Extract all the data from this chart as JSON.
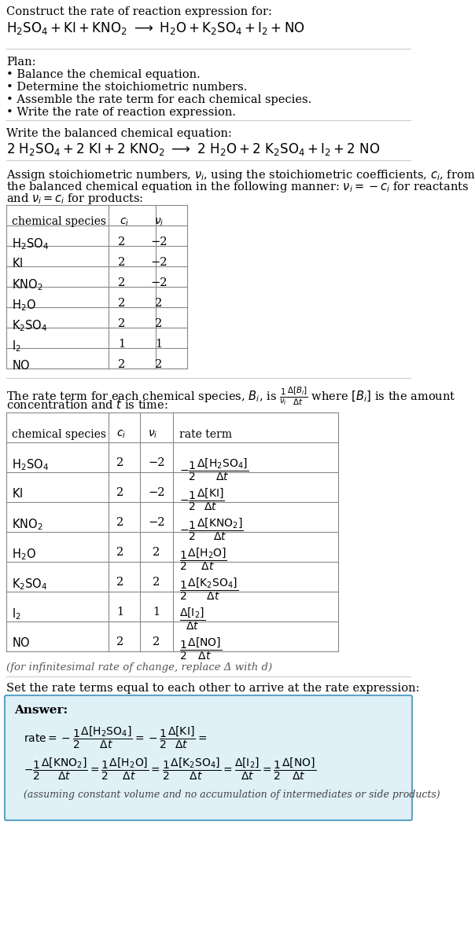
{
  "bg_color": "#ffffff",
  "text_color": "#000000",
  "title_line1": "Construct the rate of reaction expression for:",
  "reaction_unbalanced": "H₂SO₄ + KI + KNO₂  →  H₂O + K₂SO₄ + I₂ + NO",
  "plan_header": "Plan:",
  "plan_items": [
    "• Balance the chemical equation.",
    "• Determine the stoichiometric numbers.",
    "• Assemble the rate term for each chemical species.",
    "• Write the rate of reaction expression."
  ],
  "balanced_header": "Write the balanced chemical equation:",
  "reaction_balanced": "2 H₂SO₄ + 2 KI + 2 KNO₂  →  2 H₂O + 2 K₂SO₄ + I₂ + 2 NO",
  "assign_text": "Assign stoichiometric numbers, νᵢ, using the stoichiometric coefficients, cᵢ, from\nthe balanced chemical equation in the following manner: νᵢ = −cᵢ for reactants\nand νᵢ = cᵢ for products:",
  "table1_headers": [
    "chemical species",
    "cᵢ",
    "νᵢ"
  ],
  "table1_rows": [
    [
      "H₂SO₄",
      "2",
      "−2"
    ],
    [
      "KI",
      "2",
      "−2"
    ],
    [
      "KNO₂",
      "2",
      "−2"
    ],
    [
      "H₂O",
      "2",
      "2"
    ],
    [
      "K₂SO₄",
      "2",
      "2"
    ],
    [
      "I₂",
      "1",
      "1"
    ],
    [
      "NO",
      "2",
      "2"
    ]
  ],
  "rate_term_text": "The rate term for each chemical species, Bᵢ, is ¹/νᵢ Δ[Bᵢ]/Δt where [Bᵢ] is the amount\nconcentration and t is time:",
  "table2_headers": [
    "chemical species",
    "cᵢ",
    "νᵢ",
    "rate term"
  ],
  "table2_rows": [
    [
      "H₂SO₄",
      "2",
      "−2",
      "−1/2 Δ[H₂SO₄]/Δt"
    ],
    [
      "KI",
      "2",
      "−2",
      "−1/2 Δ[KI]/Δt"
    ],
    [
      "KNO₂",
      "2",
      "−2",
      "−1/2 Δ[KNO₂]/Δt"
    ],
    [
      "H₂O",
      "2",
      "2",
      "1/2 Δ[H₂O]/Δt"
    ],
    [
      "K₂SO₄",
      "2",
      "2",
      "1/2 Δ[K₂SO₄]/Δt"
    ],
    [
      "I₂",
      "1",
      "1",
      "Δ[I₂]/Δt"
    ],
    [
      "NO",
      "2",
      "2",
      "1/2 Δ[NO]/Δt"
    ]
  ],
  "infinitesimal_note": "(for infinitesimal rate of change, replace Δ with d)",
  "set_rate_text": "Set the rate terms equal to each other to arrive at the rate expression:",
  "answer_bg": "#e8f4f8",
  "answer_border": "#5ba3c9",
  "answer_label": "Answer:",
  "answer_note": "(assuming constant volume and no accumulation of intermediates or side products)"
}
